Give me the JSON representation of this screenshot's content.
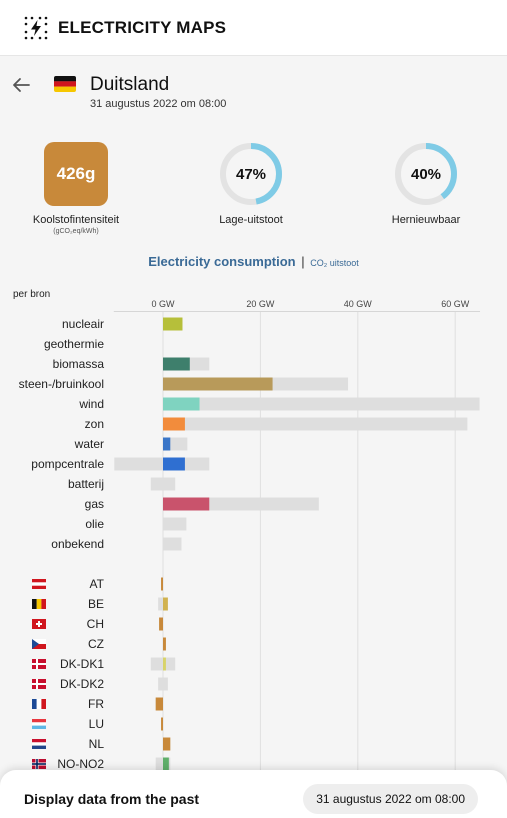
{
  "app": {
    "title": "ELECTRICITY MAPS"
  },
  "zone": {
    "name": "Duitsland",
    "datetime": "31 augustus 2022 om 08:00"
  },
  "metrics": {
    "carbon": {
      "value": "426g",
      "label": "Koolstofintensiteit",
      "unit": "(gCO₂eq/kWh)",
      "color": "#c8893a"
    },
    "low_carbon": {
      "value": "47%",
      "fraction": 0.47,
      "label": "Lage-uitstoot"
    },
    "renewable": {
      "value": "40%",
      "fraction": 0.4,
      "label": "Hernieuwbaar"
    },
    "ring_color": "#7fcbe6"
  },
  "section": {
    "title": "Electricity consumption",
    "separator": "|",
    "alt": "CO₂ uitstoot"
  },
  "chart_label": "per bron",
  "chart_data": {
    "type": "bar",
    "unit": "GW",
    "xticks": [
      0,
      20,
      40,
      60
    ],
    "xtick_labels": [
      "0 GW",
      "20 GW",
      "40 GW",
      "60 GW"
    ],
    "xlim": [
      -10,
      65
    ],
    "sources": [
      {
        "name": "nucleair",
        "value": 4.0,
        "capacity": 4.0,
        "color": "#b6bf3a"
      },
      {
        "name": "geothermie",
        "value": 0,
        "capacity": 0,
        "color": "#c94d4d"
      },
      {
        "name": "biomassa",
        "value": 5.5,
        "capacity": 9.5,
        "color": "#3e7f6c"
      },
      {
        "name": "steen-/bruinkool",
        "value": 22.5,
        "capacity": 38.0,
        "color": "#b89a5a"
      },
      {
        "name": "wind",
        "value": 7.5,
        "capacity": 65.0,
        "color": "#7fd3c0"
      },
      {
        "name": "zon",
        "value": 4.5,
        "capacity": 62.5,
        "color": "#f28c3c"
      },
      {
        "name": "water",
        "value": 1.5,
        "capacity": 5.0,
        "color": "#3a76c8"
      },
      {
        "name": "pompcentrale",
        "value": 4.5,
        "capacity": 9.5,
        "capacity_min": -10.0,
        "color": "#2f6fd1"
      },
      {
        "name": "batterij",
        "value": 0,
        "capacity": 2.5,
        "capacity_min": -2.5,
        "color": "#6a5acd"
      },
      {
        "name": "gas",
        "value": 9.5,
        "capacity": 32.0,
        "color": "#c9536c"
      },
      {
        "name": "olie",
        "value": 0,
        "capacity": 4.8,
        "color": "#8a6d5a"
      },
      {
        "name": "onbekend",
        "value": 0,
        "capacity": 3.8,
        "color": "#aaaaaa"
      }
    ],
    "exchanges": [
      {
        "name": "AT",
        "flag": "at",
        "value": -0.4,
        "capacity_min": -0.4,
        "capacity": 0,
        "color": "#c8893a"
      },
      {
        "name": "BE",
        "flag": "be",
        "value": 1.0,
        "capacity_min": -1.0,
        "capacity": 1.0,
        "color": "#d1b24e"
      },
      {
        "name": "CH",
        "flag": "ch",
        "value": -0.8,
        "capacity_min": -0.8,
        "capacity": 0,
        "color": "#c8893a"
      },
      {
        "name": "CZ",
        "flag": "cz",
        "value": 0.6,
        "capacity_min": 0,
        "capacity": 0.6,
        "color": "#c8893a"
      },
      {
        "name": "DK-DK1",
        "flag": "dk",
        "value": 0.6,
        "capacity_min": -2.5,
        "capacity": 2.5,
        "color": "#d8d36a"
      },
      {
        "name": "DK-DK2",
        "flag": "dk",
        "value": 0,
        "capacity_min": -1.0,
        "capacity": 1.0,
        "color": "#c8893a"
      },
      {
        "name": "FR",
        "flag": "fr",
        "value": -1.5,
        "capacity_min": -1.5,
        "capacity": 0,
        "color": "#c8893a"
      },
      {
        "name": "LU",
        "flag": "lu",
        "value": -0.4,
        "capacity_min": -0.4,
        "capacity": 0,
        "color": "#c8893a"
      },
      {
        "name": "NL",
        "flag": "nl",
        "value": 1.5,
        "capacity_min": 0,
        "capacity": 1.5,
        "color": "#c8893a"
      },
      {
        "name": "NO-NO2",
        "flag": "no",
        "value": 1.2,
        "capacity_min": -1.5,
        "capacity": 1.5,
        "color": "#5faf6a"
      }
    ],
    "grid": true
  },
  "bottom": {
    "label": "Display data from the past",
    "date": "31 augustus 2022 om 08:00"
  }
}
